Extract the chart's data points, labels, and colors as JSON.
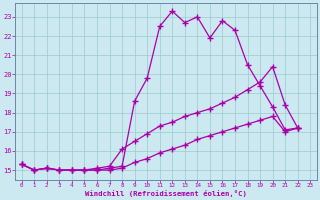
{
  "xlabel": "Windchill (Refroidissement éolien,°C)",
  "bg_color": "#cce8f0",
  "line_color": "#aa00aa",
  "grid_color": "#99cccc",
  "spine_color": "#6688aa",
  "xlim": [
    -0.5,
    23.5
  ],
  "ylim": [
    14.5,
    23.7
  ],
  "xticks": [
    0,
    1,
    2,
    3,
    4,
    5,
    6,
    7,
    8,
    9,
    10,
    11,
    12,
    13,
    14,
    15,
    16,
    17,
    18,
    19,
    20,
    21,
    22,
    23
  ],
  "yticks": [
    15,
    16,
    17,
    18,
    19,
    20,
    21,
    22,
    23
  ],
  "line1_x": [
    0,
    1,
    2,
    3,
    4,
    5,
    6,
    7,
    8,
    9,
    10,
    11,
    12,
    13,
    14,
    15,
    16,
    17,
    18,
    19,
    20,
    21,
    22
  ],
  "line1_y": [
    15.3,
    15.0,
    15.1,
    15.0,
    15.0,
    15.0,
    15.0,
    15.1,
    15.2,
    18.6,
    19.8,
    22.5,
    23.3,
    22.7,
    23.0,
    21.9,
    22.8,
    22.3,
    20.5,
    19.4,
    18.3,
    17.1,
    17.2
  ],
  "line2_x": [
    0,
    1,
    2,
    3,
    4,
    5,
    6,
    7,
    8,
    9,
    10,
    11,
    12,
    13,
    14,
    15,
    16,
    17,
    18,
    19,
    20,
    21,
    22
  ],
  "line2_y": [
    15.3,
    15.0,
    15.1,
    15.0,
    15.0,
    15.0,
    15.1,
    15.2,
    16.1,
    16.5,
    16.9,
    17.3,
    17.5,
    17.8,
    18.0,
    18.2,
    18.5,
    18.8,
    19.2,
    19.6,
    20.4,
    18.4,
    17.2
  ],
  "line3_x": [
    0,
    1,
    2,
    3,
    4,
    5,
    6,
    7,
    8,
    9,
    10,
    11,
    12,
    13,
    14,
    15,
    16,
    17,
    18,
    19,
    20,
    21,
    22
  ],
  "line3_y": [
    15.3,
    15.0,
    15.1,
    15.0,
    15.0,
    15.0,
    15.0,
    15.0,
    15.1,
    15.4,
    15.6,
    15.9,
    16.1,
    16.3,
    16.6,
    16.8,
    17.0,
    17.2,
    17.4,
    17.6,
    17.8,
    17.0,
    17.2
  ]
}
